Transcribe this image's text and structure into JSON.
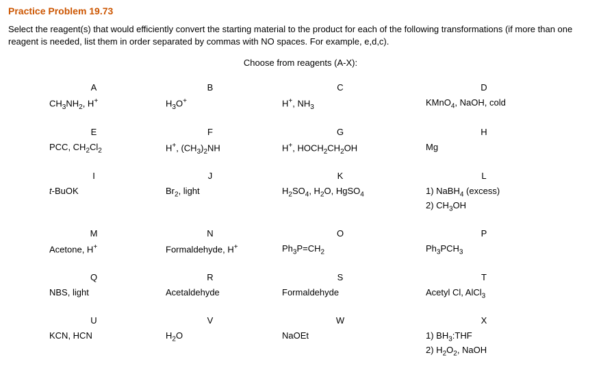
{
  "title": "Practice Problem 19.73",
  "instructions": "Select the reagent(s) that would efficiently convert the starting material to the product for each of the following transformations (if more than one reagent is needed, list them in order separated by commas with NO spaces. For example, e,d,c).",
  "choose": "Choose from reagents (A-X):",
  "rows": [
    {
      "letters": [
        "A",
        "B",
        "C",
        "D"
      ],
      "values": [
        "CH<sub>3</sub>NH<sub>2</sub>, H<sup>+</sup>",
        "H<sub>3</sub>O<sup>+</sup>",
        "H<sup>+</sup>, NH<sub>3</sub>",
        "KMnO<sub>4</sub>, NaOH, cold"
      ]
    },
    {
      "letters": [
        "E",
        "F",
        "G",
        "H"
      ],
      "values": [
        "PCC, CH<sub>2</sub>Cl<sub>2</sub>",
        "H<sup>+</sup>, (CH<sub>3</sub>)<sub>2</sub>NH",
        "H<sup>+</sup>, HOCH<sub>2</sub>CH<sub>2</sub>OH",
        "Mg"
      ]
    },
    {
      "letters": [
        "I",
        "J",
        "K",
        "L"
      ],
      "values": [
        "<i>t</i>-BuOK",
        "Br<sub>2</sub>, light",
        "H<sub>2</sub>SO<sub>4</sub>, H<sub>2</sub>O, HgSO<sub>4</sub>",
        "1) NaBH<sub>4</sub> (excess)<br>2) CH<sub>3</sub>OH"
      ]
    },
    {
      "letters": [
        "M",
        "N",
        "O",
        "P"
      ],
      "values": [
        "Acetone, H<sup>+</sup>",
        "Formaldehyde, H<sup>+</sup>",
        "Ph<sub>3</sub>P=CH<sub>2</sub>",
        "Ph<sub>3</sub>PCH<sub>3</sub>"
      ]
    },
    {
      "letters": [
        "Q",
        "R",
        "S",
        "T"
      ],
      "values": [
        "NBS, light",
        "Acetaldehyde",
        "Formaldehyde",
        "Acetyl Cl, AlCl<sub>3</sub>"
      ]
    },
    {
      "letters": [
        "U",
        "V",
        "W",
        "X"
      ],
      "values": [
        "KCN, HCN",
        "H<sub>2</sub>O",
        "NaOEt",
        "1) BH<sub>3</sub>:THF<br>2) H<sub>2</sub>O<sub>2</sub>, NaOH"
      ]
    }
  ]
}
